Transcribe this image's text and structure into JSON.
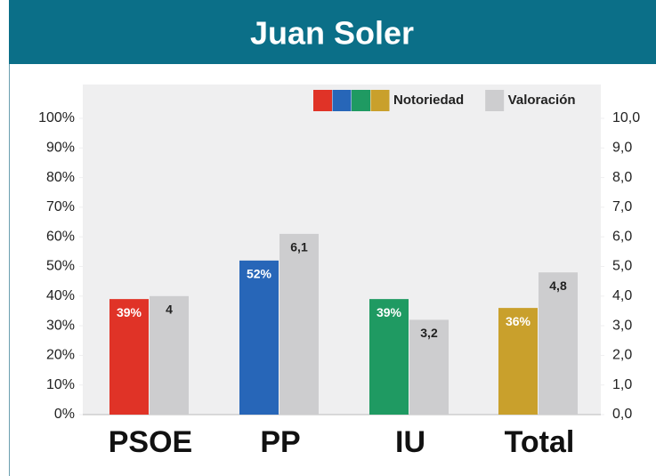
{
  "chart_data": {
    "type": "bar",
    "title": "Juan Soler",
    "categories": [
      "PSOE",
      "PP",
      "IU",
      "Total"
    ],
    "series": [
      {
        "name": "Notoriedad",
        "colors": [
          "#e03327",
          "#2766b8",
          "#1f9a62",
          "#c9a02c"
        ],
        "values": [
          39,
          52,
          39,
          36
        ],
        "value_labels": [
          "39%",
          "52%",
          "39%",
          "36%"
        ]
      },
      {
        "name": "Valoración",
        "color": "#cdcdcf",
        "axis": "y2",
        "values": [
          4,
          6.1,
          3.2,
          4.8
        ],
        "value_labels": [
          "4",
          "6,1",
          "3,2",
          "4,8"
        ]
      }
    ],
    "ylim": [
      0,
      100
    ],
    "yticks": [
      {
        "value": 0,
        "label": "0%"
      },
      {
        "value": 10,
        "label": "10%"
      },
      {
        "value": 20,
        "label": "20%"
      },
      {
        "value": 30,
        "label": "30%"
      },
      {
        "value": 40,
        "label": "40%"
      },
      {
        "value": 50,
        "label": "50%"
      },
      {
        "value": 60,
        "label": "60%"
      },
      {
        "value": 70,
        "label": "70%"
      },
      {
        "value": 80,
        "label": "80%"
      },
      {
        "value": 90,
        "label": "90%"
      },
      {
        "value": 100,
        "label": "100%"
      }
    ],
    "y2lim": [
      0,
      10
    ],
    "y2ticks": [
      {
        "value": 0,
        "label": "0,0"
      },
      {
        "value": 1,
        "label": "1,0"
      },
      {
        "value": 2,
        "label": "2,0"
      },
      {
        "value": 3,
        "label": "3,0"
      },
      {
        "value": 4,
        "label": "4,0"
      },
      {
        "value": 5,
        "label": "5,0"
      },
      {
        "value": 6,
        "label": "6,0"
      },
      {
        "value": 7,
        "label": "7,0"
      },
      {
        "value": 8,
        "label": "8,0"
      },
      {
        "value": 9,
        "label": "9,0"
      },
      {
        "value": 10,
        "label": "10,0"
      }
    ],
    "legend": "top-right"
  }
}
